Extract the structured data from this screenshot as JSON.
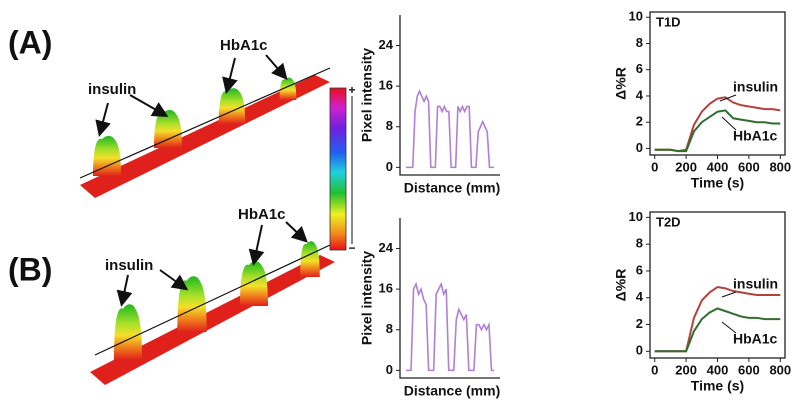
{
  "panels": [
    {
      "label": "(A)",
      "annotations": [
        "insulin",
        "HbA1c"
      ]
    },
    {
      "label": "(B)",
      "annotations": [
        "insulin",
        "HbA1c"
      ]
    }
  ],
  "colorbar": {
    "max_label": "+",
    "min_label": "−"
  },
  "chart_data": [
    {
      "type": "line",
      "ylabel": "Pixel intensity",
      "xlabel": "Distance (mm)",
      "color": "#b07fd6",
      "ylim": [
        -1.5,
        30
      ],
      "yticks": [
        0,
        8,
        16,
        24
      ],
      "values": [
        0,
        0,
        0,
        0,
        11,
        14,
        15,
        14,
        13,
        14,
        13,
        0,
        0,
        0,
        12,
        12,
        11,
        12,
        11,
        11,
        0,
        0,
        0,
        12,
        11,
        12,
        11,
        12,
        12,
        0,
        0,
        0,
        7,
        8,
        9,
        8,
        7,
        0,
        0,
        0
      ]
    },
    {
      "type": "line",
      "ylabel": "Pixel intensity",
      "xlabel": "Distance (mm)",
      "color": "#b07fd6",
      "ylim": [
        -1.5,
        30
      ],
      "yticks": [
        0,
        8,
        16,
        24
      ],
      "values": [
        0,
        0,
        0,
        16,
        17,
        15,
        16,
        14,
        13,
        0,
        0,
        0,
        15,
        16,
        17,
        15,
        16,
        0,
        0,
        0,
        10,
        12,
        11,
        10,
        11,
        0,
        0,
        0,
        9,
        9,
        8,
        9,
        8,
        9,
        0,
        0
      ]
    },
    {
      "type": "line",
      "annotation": "T1D",
      "ylabel": "Δ%R",
      "xlabel": "Time (s)",
      "xlim": [
        -30,
        830
      ],
      "xticks": [
        0,
        200,
        400,
        600,
        800
      ],
      "ylim": [
        -0.5,
        10.4
      ],
      "yticks": [
        0,
        2,
        4,
        6,
        8,
        10
      ],
      "x": [
        0,
        50,
        100,
        150,
        200,
        250,
        300,
        350,
        400,
        450,
        500,
        550,
        600,
        650,
        700,
        750,
        800
      ],
      "series": [
        {
          "name": "insulin",
          "color": "#b5413d",
          "values": [
            -0.1,
            -0.1,
            -0.1,
            -0.2,
            -0.1,
            1.8,
            2.8,
            3.4,
            3.8,
            3.9,
            3.5,
            3.3,
            3.2,
            3.1,
            3.0,
            3.0,
            2.9
          ]
        },
        {
          "name": "HbA1c",
          "color": "#2f6e2f",
          "values": [
            -0.1,
            -0.1,
            -0.1,
            -0.2,
            -0.2,
            1.3,
            2.0,
            2.4,
            2.8,
            2.9,
            2.3,
            2.2,
            2.1,
            2.0,
            2.0,
            1.9,
            1.9
          ]
        }
      ]
    },
    {
      "type": "line",
      "annotation": "T2D",
      "ylabel": "Δ%R",
      "xlabel": "Time (s)",
      "xlim": [
        -30,
        830
      ],
      "xticks": [
        0,
        200,
        400,
        600,
        800
      ],
      "ylim": [
        -0.5,
        10.4
      ],
      "yticks": [
        0,
        2,
        4,
        6,
        8,
        10
      ],
      "x": [
        0,
        50,
        100,
        150,
        200,
        250,
        300,
        350,
        400,
        450,
        500,
        550,
        600,
        650,
        700,
        750,
        800
      ],
      "series": [
        {
          "name": "insulin",
          "color": "#b5413d",
          "values": [
            0,
            0,
            0,
            0,
            0,
            2.5,
            3.8,
            4.4,
            4.8,
            4.7,
            4.5,
            4.4,
            4.3,
            4.2,
            4.2,
            4.2,
            4.2
          ]
        },
        {
          "name": "HbA1c",
          "color": "#2f6e2f",
          "values": [
            0,
            0,
            0,
            0,
            0,
            1.5,
            2.4,
            2.9,
            3.2,
            3.0,
            2.8,
            2.6,
            2.5,
            2.5,
            2.4,
            2.4,
            2.4
          ]
        }
      ]
    }
  ]
}
